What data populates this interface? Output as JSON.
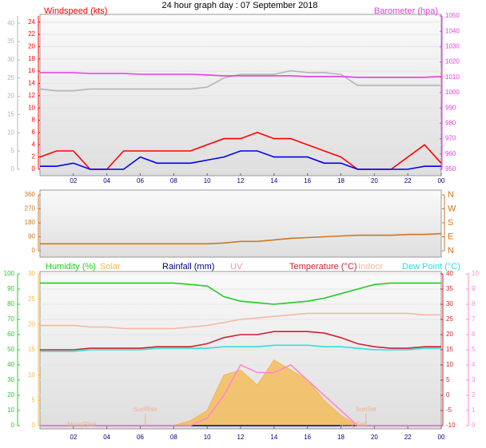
{
  "chart_data": [
    {
      "type": "line",
      "title": "24 hour graph day : 07 September 2018",
      "ylabel": "Windspeed (kts)",
      "y2label": "Barometer (hpa)",
      "x": [
        0,
        1,
        2,
        3,
        4,
        5,
        6,
        7,
        8,
        9,
        10,
        11,
        12,
        13,
        14,
        15,
        16,
        17,
        18,
        19,
        20,
        21,
        22,
        23,
        24
      ],
      "xlim": [
        0,
        24
      ],
      "xticks": [
        {
          "value": 2,
          "label": "02"
        },
        {
          "value": 4,
          "label": "04"
        },
        {
          "value": 6,
          "label": "06"
        },
        {
          "value": 8,
          "label": "08"
        },
        10,
        12,
        14,
        16,
        18,
        20,
        22,
        {
          "value": 24,
          "label": "00"
        }
      ],
      "ylim": [
        0,
        25
      ],
      "yticks": [
        0,
        2,
        4,
        6,
        8,
        10,
        12,
        14,
        16,
        18,
        20,
        22,
        24
      ],
      "y2lim": [
        950,
        1050
      ],
      "y2ticks": [
        950,
        960,
        970,
        980,
        990,
        1000,
        1010,
        1020,
        1030,
        1040,
        1050
      ],
      "y3lim": [
        0,
        42
      ],
      "y3ticks": [
        0,
        5,
        10,
        15,
        20,
        25,
        30,
        35,
        40
      ],
      "grid": true,
      "series": [
        {
          "color": "#b4b4b4",
          "axis": "y3",
          "values": [
            22,
            21.5,
            21.5,
            22,
            22,
            22,
            22,
            22,
            22,
            22,
            22.5,
            25,
            26,
            26,
            26,
            27,
            26.5,
            26.5,
            26,
            23,
            23,
            23,
            23,
            23,
            23
          ]
        },
        {
          "color": "#e040e0",
          "axis": "y2",
          "values": [
            1013,
            1013,
            1013,
            1012.5,
            1012.5,
            1012.5,
            1012,
            1012,
            1012,
            1012,
            1011.5,
            1011,
            1011,
            1011,
            1011,
            1011,
            1010.5,
            1010.5,
            1010.5,
            1010,
            1010,
            1010,
            1010,
            1010,
            1010.5
          ]
        },
        {
          "color": "#ff0000",
          "axis": "y",
          "values": [
            2,
            3,
            3,
            0,
            0,
            3,
            3,
            3,
            3,
            3,
            4,
            5,
            5,
            6,
            5,
            5,
            4,
            3,
            2,
            0,
            0,
            0,
            2,
            4,
            1
          ]
        },
        {
          "color": "#0000ee",
          "axis": "y",
          "values": [
            0.5,
            0.5,
            1,
            0,
            0,
            0,
            2,
            1,
            1,
            1,
            1.5,
            2,
            3,
            3,
            2,
            2,
            2,
            1,
            1,
            0,
            0,
            0,
            0,
            0.5,
            0.5
          ]
        }
      ]
    },
    {
      "type": "line",
      "x": [
        0,
        1,
        2,
        3,
        4,
        5,
        6,
        7,
        8,
        9,
        10,
        11,
        12,
        13,
        14,
        15,
        16,
        17,
        18,
        19,
        20,
        21,
        22,
        23,
        24
      ],
      "xlim": [
        0,
        24
      ],
      "ylim": [
        0,
        360
      ],
      "yticks": [
        0,
        90,
        180,
        270,
        360
      ],
      "y2lim": [
        0,
        360
      ],
      "y2ticks": [
        {
          "value": 0,
          "label": "N"
        },
        {
          "value": 90,
          "label": "E"
        },
        {
          "value": 180,
          "label": "S"
        },
        {
          "value": 270,
          "label": "W"
        },
        {
          "value": 360,
          "label": "N"
        }
      ],
      "series": [
        {
          "color": "#cc7722",
          "axis": "y",
          "values": [
            45,
            45,
            45,
            45,
            45,
            45,
            45,
            45,
            45,
            45,
            45,
            50,
            60,
            60,
            70,
            80,
            85,
            90,
            95,
            100,
            100,
            100,
            105,
            105,
            110
          ]
        }
      ]
    },
    {
      "type": "line",
      "x": [
        0,
        1,
        2,
        3,
        4,
        5,
        6,
        7,
        8,
        9,
        10,
        11,
        12,
        13,
        14,
        15,
        16,
        17,
        18,
        19,
        20,
        21,
        22,
        23,
        24
      ],
      "xlim": [
        0,
        24
      ],
      "xticks": [
        {
          "value": 2,
          "label": "02"
        },
        {
          "value": 4,
          "label": "04"
        },
        {
          "value": 6,
          "label": "06"
        },
        {
          "value": 8,
          "label": "08"
        },
        10,
        12,
        14,
        16,
        18,
        20,
        22,
        {
          "value": 24,
          "label": "00"
        }
      ],
      "ylim": [
        0,
        100
      ],
      "yticks": [
        0,
        10,
        20,
        30,
        40,
        50,
        60,
        70,
        80,
        90,
        100
      ],
      "y2lim": [
        -10,
        40
      ],
      "y2ticks": [
        -10,
        -5,
        0,
        5,
        10,
        15,
        20,
        25,
        30,
        35,
        40
      ],
      "y3lim": [
        0,
        30
      ],
      "y3ticks": [
        0,
        5,
        10,
        15,
        20,
        25,
        30
      ],
      "y4lim": [
        0,
        10
      ],
      "y4ticks": [
        0,
        1,
        2,
        3,
        4,
        5,
        6,
        7,
        8,
        9,
        10
      ],
      "grid": true,
      "series": [
        {
          "name": "Humidity (%)",
          "color": "#22cc22",
          "axis": "y",
          "values": [
            94,
            94,
            94,
            94,
            94,
            94,
            94,
            94,
            94,
            93,
            92,
            85,
            82,
            81,
            80,
            81,
            82,
            84,
            87,
            90,
            93,
            94,
            94,
            94,
            94
          ]
        },
        {
          "name": "Solar",
          "color": "#f5b84a",
          "axis": "y3",
          "style": "area",
          "values": [
            0,
            0,
            0,
            0,
            0,
            0,
            0,
            0,
            0,
            1,
            3,
            10,
            11,
            8,
            13,
            11,
            9,
            5,
            2,
            0,
            0,
            0,
            0,
            0,
            0
          ]
        },
        {
          "name": "Rainfall (mm)",
          "color": "#000080",
          "axis": "y3",
          "values": [
            0,
            0,
            0,
            0,
            0,
            0,
            0,
            0,
            0,
            0,
            0,
            0,
            0,
            0,
            0,
            0,
            0,
            0,
            0,
            0,
            0,
            0,
            0,
            0,
            0
          ]
        },
        {
          "name": "UV",
          "color": "#ff88cc",
          "axis": "y4",
          "values": [
            0,
            0,
            0,
            0,
            0,
            0,
            0,
            0,
            0,
            0,
            0.5,
            2,
            4,
            3.5,
            3.5,
            4,
            3,
            2,
            1,
            0,
            0,
            0,
            0,
            0,
            0
          ]
        },
        {
          "name": "Temperature (°C)",
          "color": "#cc2233",
          "axis": "y2",
          "values": [
            15,
            15,
            15,
            15.5,
            15.5,
            15.5,
            15.5,
            16,
            16,
            16,
            17,
            19,
            20,
            20,
            21,
            21,
            21,
            20.5,
            19,
            17,
            16,
            15.5,
            15.5,
            16,
            16
          ]
        },
        {
          "name": "Indoor",
          "color": "#f5b8a0",
          "axis": "y2",
          "values": [
            23,
            23,
            23,
            22.5,
            22.5,
            22,
            22,
            22,
            22,
            22.5,
            23,
            24,
            25,
            25.5,
            26,
            26.5,
            27,
            27,
            27,
            27,
            27,
            27,
            27,
            26.5,
            26.5
          ]
        },
        {
          "name": "Dew Point (°C)",
          "color": "#33dddd",
          "axis": "y2",
          "values": [
            14.5,
            14.5,
            14.5,
            15,
            15,
            15,
            15,
            15.5,
            15.5,
            15.5,
            15.5,
            16,
            16,
            16,
            16.5,
            16.5,
            16.5,
            16,
            16,
            15.5,
            15,
            15,
            15,
            15.5,
            15.5
          ]
        }
      ],
      "annotations": [
        {
          "label": "MoonRise",
          "x": 2.5
        },
        {
          "label": "SunRise",
          "x": 6.3
        },
        {
          "label": "SunSet",
          "x": 19.5
        },
        {
          "label": "MoonSet",
          "x": 18.7
        }
      ]
    }
  ]
}
